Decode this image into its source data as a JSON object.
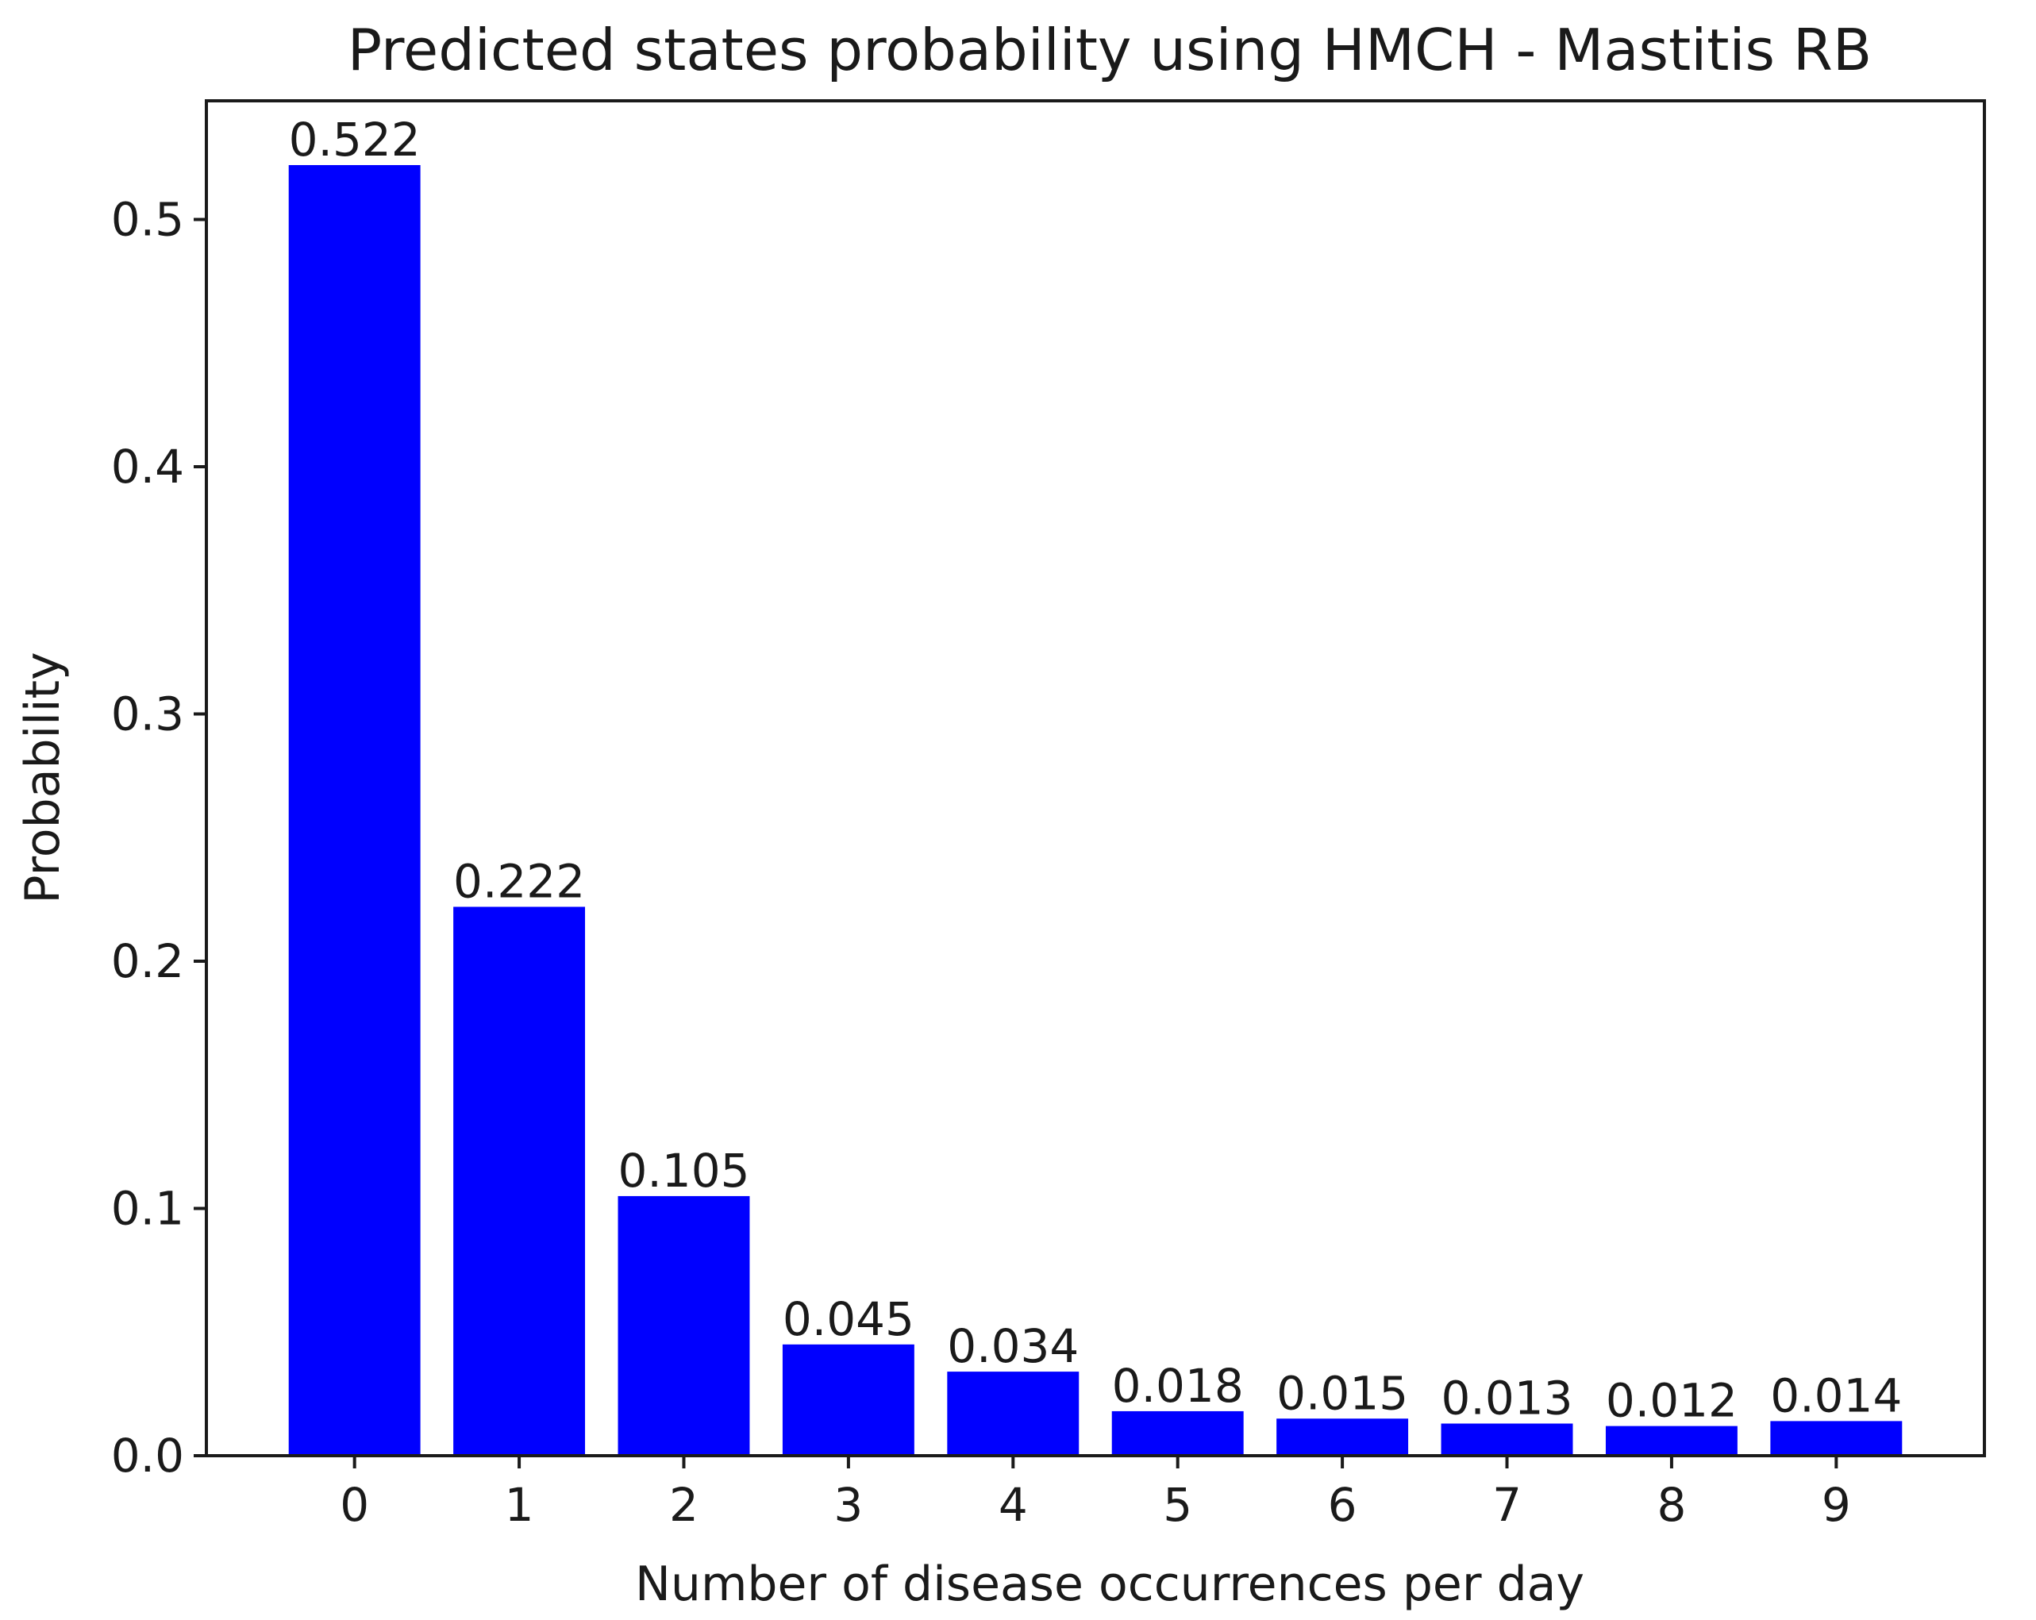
{
  "chart_data": {
    "type": "bar",
    "title": "Predicted states probability using HMCH - Mastitis RB",
    "xlabel": "Number of disease occurrences per day",
    "ylabel": "Probability",
    "categories": [
      "0",
      "1",
      "2",
      "3",
      "4",
      "5",
      "6",
      "7",
      "8",
      "9"
    ],
    "values": [
      0.522,
      0.222,
      0.105,
      0.045,
      0.034,
      0.018,
      0.015,
      0.013,
      0.012,
      0.014
    ],
    "value_labels": [
      "0.522",
      "0.222",
      "0.105",
      "0.045",
      "0.034",
      "0.018",
      "0.015",
      "0.013",
      "0.012",
      "0.014"
    ],
    "yticks": [
      0.0,
      0.1,
      0.2,
      0.3,
      0.4,
      0.5
    ],
    "ytick_labels": [
      "0.0",
      "0.1",
      "0.2",
      "0.3",
      "0.4",
      "0.5"
    ],
    "ylim": [
      0,
      0.548
    ],
    "grid": false,
    "bar_color": "#0000ff",
    "axis_color": "#1a1a1a"
  }
}
